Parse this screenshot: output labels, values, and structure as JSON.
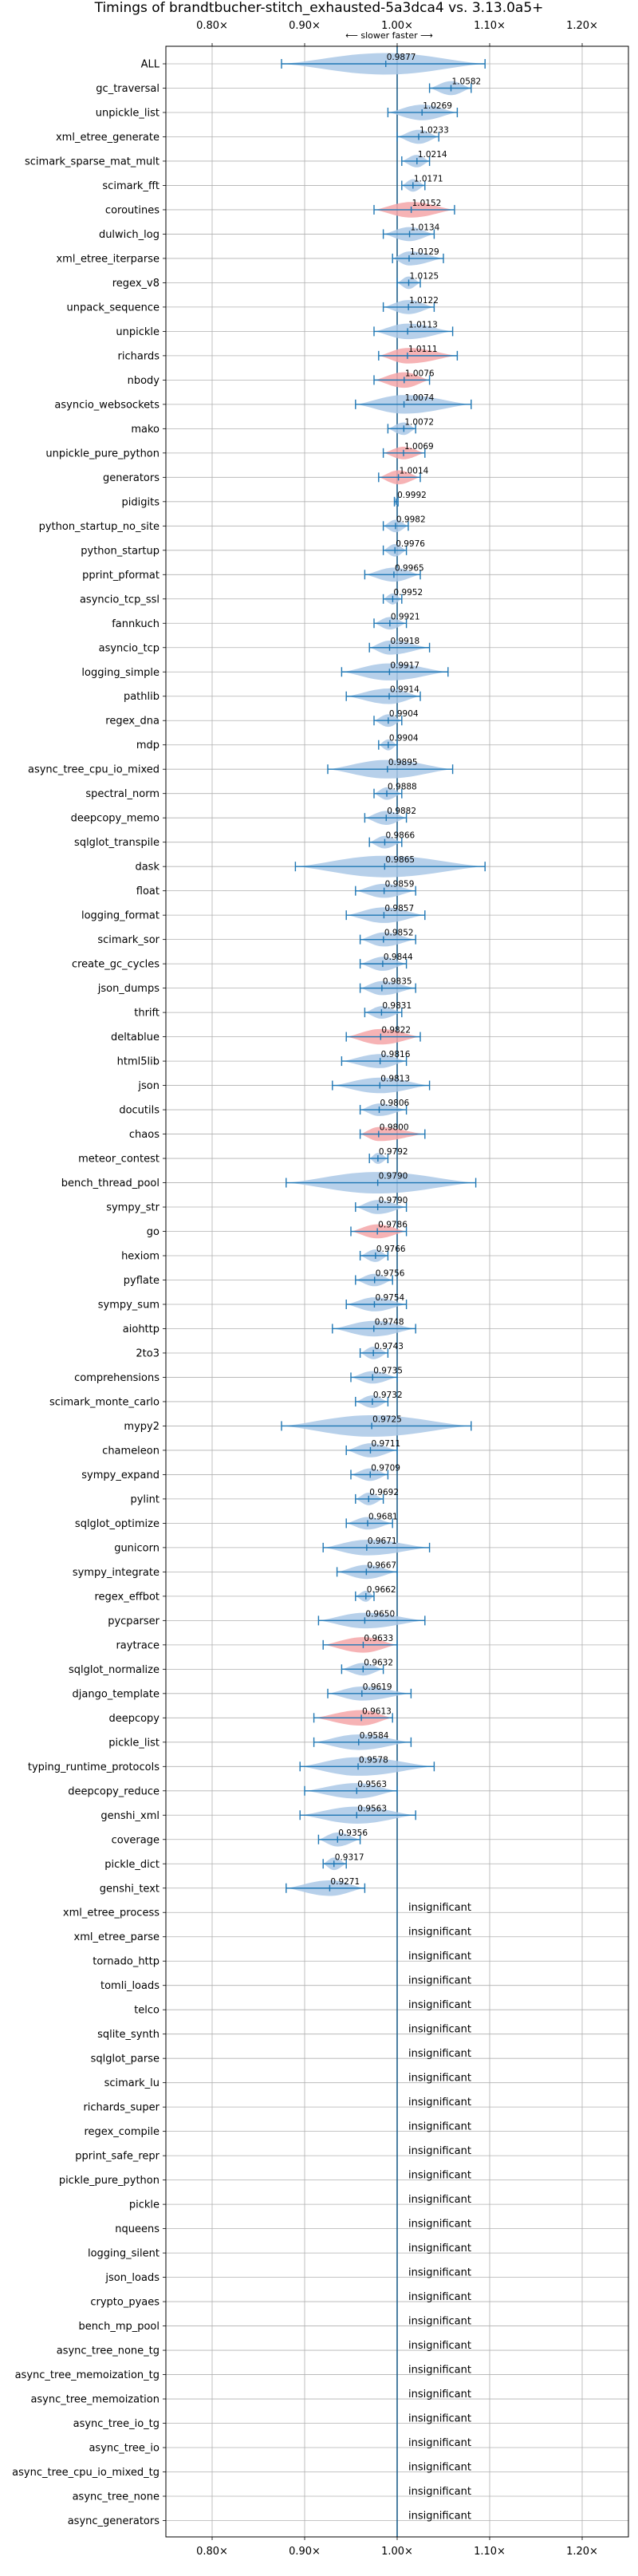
{
  "chart_data": {
    "type": "violin",
    "title": "Timings of brandtbucher-stitch_exhausted-5a3dca4 vs. 3.13.0a5+",
    "direction_label": "⟵ slower    faster ⟶",
    "xlim": [
      0.75,
      1.25
    ],
    "xticks": [
      0.8,
      0.9,
      1.0,
      1.1,
      1.2
    ],
    "xtick_labels": [
      "0.80×",
      "0.90×",
      "1.00×",
      "1.10×",
      "1.20×"
    ],
    "grid": true,
    "reference_line": 1.0,
    "insignificant_label": "insignificant",
    "colors": {
      "violin": "#aac8e6",
      "violin_significant": "#f4a6a8",
      "errorbar": "#1f77b4",
      "reference": "#1f5f8b",
      "grid": "#b0b0b0"
    },
    "benchmarks": [
      {
        "name": "ALL",
        "label": "0.9877",
        "mean": 0.9877,
        "min": 0.875,
        "max": 1.095,
        "width": 0.13,
        "highlight": false
      },
      {
        "name": "gc_traversal",
        "label": "1.0582",
        "mean": 1.0582,
        "min": 1.035,
        "max": 1.08,
        "width": 0.04,
        "highlight": false
      },
      {
        "name": "unpickle_list",
        "label": "1.0269",
        "mean": 1.0269,
        "min": 0.99,
        "max": 1.065,
        "width": 0.05,
        "highlight": false
      },
      {
        "name": "xml_etree_generate",
        "label": "1.0233",
        "mean": 1.0233,
        "min": 1.0,
        "max": 1.045,
        "width": 0.04,
        "highlight": false
      },
      {
        "name": "scimark_sparse_mat_mult",
        "label": "1.0214",
        "mean": 1.0214,
        "min": 1.005,
        "max": 1.035,
        "width": 0.03,
        "highlight": false
      },
      {
        "name": "scimark_fft",
        "label": "1.0171",
        "mean": 1.0171,
        "min": 1.005,
        "max": 1.03,
        "width": 0.03,
        "highlight": false
      },
      {
        "name": "coroutines",
        "label": "1.0152",
        "mean": 1.0152,
        "min": 0.975,
        "max": 1.062,
        "width": 0.05,
        "highlight": true
      },
      {
        "name": "dulwich_log",
        "label": "1.0134",
        "mean": 1.0134,
        "min": 0.985,
        "max": 1.04,
        "width": 0.04,
        "highlight": false
      },
      {
        "name": "xml_etree_iterparse",
        "label": "1.0129",
        "mean": 1.0129,
        "min": 0.995,
        "max": 1.05,
        "width": 0.04,
        "highlight": false
      },
      {
        "name": "regex_v8",
        "label": "1.0125",
        "mean": 1.0125,
        "min": 1.0,
        "max": 1.025,
        "width": 0.03,
        "highlight": false
      },
      {
        "name": "unpack_sequence",
        "label": "1.0122",
        "mean": 1.0122,
        "min": 0.985,
        "max": 1.04,
        "width": 0.04,
        "highlight": false
      },
      {
        "name": "unpickle",
        "label": "1.0113",
        "mean": 1.0113,
        "min": 0.975,
        "max": 1.06,
        "width": 0.05,
        "highlight": false
      },
      {
        "name": "richards",
        "label": "1.0111",
        "mean": 1.0111,
        "min": 0.98,
        "max": 1.065,
        "width": 0.05,
        "highlight": true
      },
      {
        "name": "nbody",
        "label": "1.0076",
        "mean": 1.0076,
        "min": 0.975,
        "max": 1.035,
        "width": 0.05,
        "highlight": true
      },
      {
        "name": "asyncio_websockets",
        "label": "1.0074",
        "mean": 1.0074,
        "min": 0.955,
        "max": 1.08,
        "width": 0.07,
        "highlight": false
      },
      {
        "name": "mako",
        "label": "1.0072",
        "mean": 1.0072,
        "min": 0.99,
        "max": 1.02,
        "width": 0.03,
        "highlight": false
      },
      {
        "name": "unpickle_pure_python",
        "label": "1.0069",
        "mean": 1.0069,
        "min": 0.985,
        "max": 1.03,
        "width": 0.03,
        "highlight": true
      },
      {
        "name": "generators",
        "label": "1.0014",
        "mean": 1.0014,
        "min": 0.98,
        "max": 1.025,
        "width": 0.04,
        "highlight": true
      },
      {
        "name": "pidigits",
        "label": "0.9992",
        "mean": 0.9992,
        "min": 0.997,
        "max": 1.001,
        "width": 0.006,
        "highlight": false
      },
      {
        "name": "python_startup_no_site",
        "label": "0.9982",
        "mean": 0.9982,
        "min": 0.985,
        "max": 1.012,
        "width": 0.03,
        "highlight": false
      },
      {
        "name": "python_startup",
        "label": "0.9976",
        "mean": 0.9976,
        "min": 0.985,
        "max": 1.01,
        "width": 0.03,
        "highlight": false
      },
      {
        "name": "pprint_pformat",
        "label": "0.9965",
        "mean": 0.9965,
        "min": 0.965,
        "max": 1.025,
        "width": 0.04,
        "highlight": false
      },
      {
        "name": "asyncio_tcp_ssl",
        "label": "0.9952",
        "mean": 0.9952,
        "min": 0.985,
        "max": 1.005,
        "width": 0.02,
        "highlight": false
      },
      {
        "name": "fannkuch",
        "label": "0.9921",
        "mean": 0.9921,
        "min": 0.975,
        "max": 1.01,
        "width": 0.03,
        "highlight": false
      },
      {
        "name": "asyncio_tcp",
        "label": "0.9918",
        "mean": 0.9918,
        "min": 0.97,
        "max": 1.035,
        "width": 0.04,
        "highlight": false
      },
      {
        "name": "logging_simple",
        "label": "0.9917",
        "mean": 0.9917,
        "min": 0.94,
        "max": 1.055,
        "width": 0.06,
        "highlight": false
      },
      {
        "name": "pathlib",
        "label": "0.9914",
        "mean": 0.9914,
        "min": 0.945,
        "max": 1.025,
        "width": 0.05,
        "highlight": false
      },
      {
        "name": "regex_dna",
        "label": "0.9904",
        "mean": 0.9904,
        "min": 0.975,
        "max": 1.005,
        "width": 0.03,
        "highlight": false
      },
      {
        "name": "mdp",
        "label": "0.9904",
        "mean": 0.9904,
        "min": 0.98,
        "max": 1.0,
        "width": 0.02,
        "highlight": false
      },
      {
        "name": "async_tree_cpu_io_mixed",
        "label": "0.9895",
        "mean": 0.9895,
        "min": 0.925,
        "max": 1.06,
        "width": 0.07,
        "highlight": false
      },
      {
        "name": "spectral_norm",
        "label": "0.9888",
        "mean": 0.9888,
        "min": 0.975,
        "max": 1.005,
        "width": 0.03,
        "highlight": false
      },
      {
        "name": "deepcopy_memo",
        "label": "0.9882",
        "mean": 0.9882,
        "min": 0.965,
        "max": 1.01,
        "width": 0.04,
        "highlight": false
      },
      {
        "name": "sqlglot_transpile",
        "label": "0.9866",
        "mean": 0.9866,
        "min": 0.97,
        "max": 1.005,
        "width": 0.03,
        "highlight": false
      },
      {
        "name": "dask",
        "label": "0.9865",
        "mean": 0.9865,
        "min": 0.89,
        "max": 1.095,
        "width": 0.12,
        "highlight": false
      },
      {
        "name": "float",
        "label": "0.9859",
        "mean": 0.9859,
        "min": 0.955,
        "max": 1.02,
        "width": 0.04,
        "highlight": false
      },
      {
        "name": "logging_format",
        "label": "0.9857",
        "mean": 0.9857,
        "min": 0.945,
        "max": 1.03,
        "width": 0.05,
        "highlight": false
      },
      {
        "name": "scimark_sor",
        "label": "0.9852",
        "mean": 0.9852,
        "min": 0.96,
        "max": 1.02,
        "width": 0.04,
        "highlight": false
      },
      {
        "name": "create_gc_cycles",
        "label": "0.9844",
        "mean": 0.9844,
        "min": 0.96,
        "max": 1.01,
        "width": 0.04,
        "highlight": false
      },
      {
        "name": "json_dumps",
        "label": "0.9835",
        "mean": 0.9835,
        "min": 0.96,
        "max": 1.02,
        "width": 0.04,
        "highlight": false
      },
      {
        "name": "thrift",
        "label": "0.9831",
        "mean": 0.9831,
        "min": 0.965,
        "max": 1.005,
        "width": 0.03,
        "highlight": false
      },
      {
        "name": "deltablue",
        "label": "0.9822",
        "mean": 0.9822,
        "min": 0.945,
        "max": 1.025,
        "width": 0.05,
        "highlight": true
      },
      {
        "name": "html5lib",
        "label": "0.9816",
        "mean": 0.9816,
        "min": 0.94,
        "max": 1.01,
        "width": 0.04,
        "highlight": false
      },
      {
        "name": "json",
        "label": "0.9813",
        "mean": 0.9813,
        "min": 0.93,
        "max": 1.035,
        "width": 0.05,
        "highlight": false
      },
      {
        "name": "docutils",
        "label": "0.9806",
        "mean": 0.9806,
        "min": 0.96,
        "max": 1.01,
        "width": 0.03,
        "highlight": false
      },
      {
        "name": "chaos",
        "label": "0.9800",
        "mean": 0.98,
        "min": 0.96,
        "max": 1.03,
        "width": 0.04,
        "highlight": true
      },
      {
        "name": "meteor_contest",
        "label": "0.9792",
        "mean": 0.9792,
        "min": 0.97,
        "max": 0.99,
        "width": 0.02,
        "highlight": false
      },
      {
        "name": "bench_thread_pool",
        "label": "0.9790",
        "mean": 0.979,
        "min": 0.88,
        "max": 1.085,
        "width": 0.12,
        "highlight": false
      },
      {
        "name": "sympy_str",
        "label": "0.9790",
        "mean": 0.979,
        "min": 0.955,
        "max": 1.01,
        "width": 0.04,
        "highlight": false
      },
      {
        "name": "go",
        "label": "0.9786",
        "mean": 0.9786,
        "min": 0.95,
        "max": 1.01,
        "width": 0.04,
        "highlight": true
      },
      {
        "name": "hexiom",
        "label": "0.9766",
        "mean": 0.9766,
        "min": 0.96,
        "max": 0.99,
        "width": 0.03,
        "highlight": false
      },
      {
        "name": "pyflate",
        "label": "0.9756",
        "mean": 0.9756,
        "min": 0.955,
        "max": 0.995,
        "width": 0.03,
        "highlight": false
      },
      {
        "name": "sympy_sum",
        "label": "0.9754",
        "mean": 0.9754,
        "min": 0.945,
        "max": 1.01,
        "width": 0.04,
        "highlight": false
      },
      {
        "name": "aiohttp",
        "label": "0.9748",
        "mean": 0.9748,
        "min": 0.93,
        "max": 1.02,
        "width": 0.05,
        "highlight": false
      },
      {
        "name": "2to3",
        "label": "0.9743",
        "mean": 0.9743,
        "min": 0.96,
        "max": 0.99,
        "width": 0.03,
        "highlight": false
      },
      {
        "name": "comprehensions",
        "label": "0.9735",
        "mean": 0.9735,
        "min": 0.95,
        "max": 1.0,
        "width": 0.03,
        "highlight": false
      },
      {
        "name": "scimark_monte_carlo",
        "label": "0.9732",
        "mean": 0.9732,
        "min": 0.955,
        "max": 0.99,
        "width": 0.03,
        "highlight": false
      },
      {
        "name": "mypy2",
        "label": "0.9725",
        "mean": 0.9725,
        "min": 0.875,
        "max": 1.08,
        "width": 0.12,
        "highlight": false
      },
      {
        "name": "chameleon",
        "label": "0.9711",
        "mean": 0.9711,
        "min": 0.945,
        "max": 1.0,
        "width": 0.04,
        "highlight": false
      },
      {
        "name": "sympy_expand",
        "label": "0.9709",
        "mean": 0.9709,
        "min": 0.95,
        "max": 0.99,
        "width": 0.03,
        "highlight": false
      },
      {
        "name": "pylint",
        "label": "0.9692",
        "mean": 0.9692,
        "min": 0.955,
        "max": 0.985,
        "width": 0.03,
        "highlight": false
      },
      {
        "name": "sqlglot_optimize",
        "label": "0.9681",
        "mean": 0.9681,
        "min": 0.945,
        "max": 0.995,
        "width": 0.03,
        "highlight": false
      },
      {
        "name": "gunicorn",
        "label": "0.9671",
        "mean": 0.9671,
        "min": 0.92,
        "max": 1.035,
        "width": 0.05,
        "highlight": false
      },
      {
        "name": "sympy_integrate",
        "label": "0.9667",
        "mean": 0.9667,
        "min": 0.935,
        "max": 1.0,
        "width": 0.04,
        "highlight": false
      },
      {
        "name": "regex_effbot",
        "label": "0.9662",
        "mean": 0.9662,
        "min": 0.955,
        "max": 0.975,
        "width": 0.02,
        "highlight": false
      },
      {
        "name": "pycparser",
        "label": "0.9650",
        "mean": 0.965,
        "min": 0.915,
        "max": 1.03,
        "width": 0.05,
        "highlight": false
      },
      {
        "name": "raytrace",
        "label": "0.9633",
        "mean": 0.9633,
        "min": 0.92,
        "max": 1.0,
        "width": 0.05,
        "highlight": true
      },
      {
        "name": "sqlglot_normalize",
        "label": "0.9632",
        "mean": 0.9632,
        "min": 0.94,
        "max": 0.985,
        "width": 0.03,
        "highlight": false
      },
      {
        "name": "django_template",
        "label": "0.9619",
        "mean": 0.9619,
        "min": 0.925,
        "max": 1.015,
        "width": 0.04,
        "highlight": false
      },
      {
        "name": "deepcopy",
        "label": "0.9613",
        "mean": 0.9613,
        "min": 0.91,
        "max": 0.995,
        "width": 0.05,
        "highlight": true
      },
      {
        "name": "pickle_list",
        "label": "0.9584",
        "mean": 0.9584,
        "min": 0.91,
        "max": 1.015,
        "width": 0.05,
        "highlight": false
      },
      {
        "name": "typing_runtime_protocols",
        "label": "0.9578",
        "mean": 0.9578,
        "min": 0.895,
        "max": 1.04,
        "width": 0.07,
        "highlight": false
      },
      {
        "name": "deepcopy_reduce",
        "label": "0.9563",
        "mean": 0.9563,
        "min": 0.9,
        "max": 1.0,
        "width": 0.05,
        "highlight": false
      },
      {
        "name": "genshi_xml",
        "label": "0.9563",
        "mean": 0.9563,
        "min": 0.895,
        "max": 1.02,
        "width": 0.06,
        "highlight": false
      },
      {
        "name": "coverage",
        "label": "0.9356",
        "mean": 0.9356,
        "min": 0.915,
        "max": 0.96,
        "width": 0.04,
        "highlight": false
      },
      {
        "name": "pickle_dict",
        "label": "0.9317",
        "mean": 0.9317,
        "min": 0.92,
        "max": 0.945,
        "width": 0.03,
        "highlight": false
      },
      {
        "name": "genshi_text",
        "label": "0.9271",
        "mean": 0.9271,
        "min": 0.88,
        "max": 0.965,
        "width": 0.05,
        "highlight": false
      },
      {
        "name": "xml_etree_process",
        "insignificant": true
      },
      {
        "name": "xml_etree_parse",
        "insignificant": true
      },
      {
        "name": "tornado_http",
        "insignificant": true
      },
      {
        "name": "tomli_loads",
        "insignificant": true
      },
      {
        "name": "telco",
        "insignificant": true
      },
      {
        "name": "sqlite_synth",
        "insignificant": true
      },
      {
        "name": "sqlglot_parse",
        "insignificant": true
      },
      {
        "name": "scimark_lu",
        "insignificant": true
      },
      {
        "name": "richards_super",
        "insignificant": true
      },
      {
        "name": "regex_compile",
        "insignificant": true
      },
      {
        "name": "pprint_safe_repr",
        "insignificant": true
      },
      {
        "name": "pickle_pure_python",
        "insignificant": true
      },
      {
        "name": "pickle",
        "insignificant": true
      },
      {
        "name": "nqueens",
        "insignificant": true
      },
      {
        "name": "logging_silent",
        "insignificant": true
      },
      {
        "name": "json_loads",
        "insignificant": true
      },
      {
        "name": "crypto_pyaes",
        "insignificant": true
      },
      {
        "name": "bench_mp_pool",
        "insignificant": true
      },
      {
        "name": "async_tree_none_tg",
        "insignificant": true
      },
      {
        "name": "async_tree_memoization_tg",
        "insignificant": true
      },
      {
        "name": "async_tree_memoization",
        "insignificant": true
      },
      {
        "name": "async_tree_io_tg",
        "insignificant": true
      },
      {
        "name": "async_tree_io",
        "insignificant": true
      },
      {
        "name": "async_tree_cpu_io_mixed_tg",
        "insignificant": true
      },
      {
        "name": "async_tree_none",
        "insignificant": true
      },
      {
        "name": "async_generators",
        "insignificant": true
      }
    ]
  }
}
